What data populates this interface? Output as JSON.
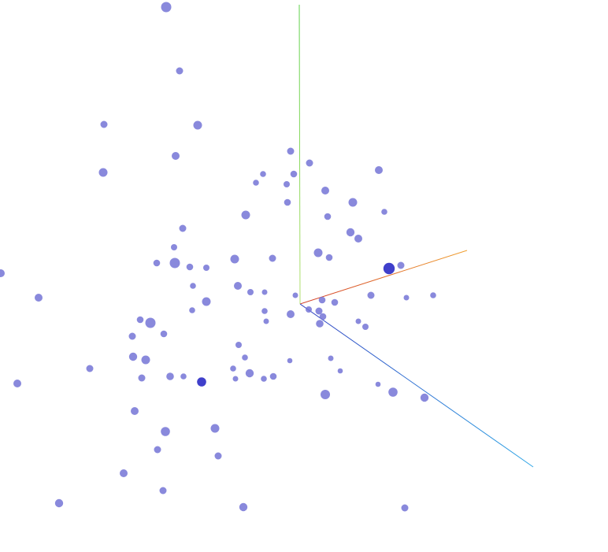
{
  "scene": {
    "background": "#ffffff",
    "point_color": "#7474d6",
    "highlight_point_color": "#3535c8",
    "axes": {
      "x": {
        "color_start": "#d23c28",
        "color_end": "#f0a030"
      },
      "y": {
        "color_start": "#b4e070",
        "color_end": "#5ed14a"
      },
      "z": {
        "color_start": "#2f3fc0",
        "color_end": "#2ea6e6"
      }
    }
  }
}
